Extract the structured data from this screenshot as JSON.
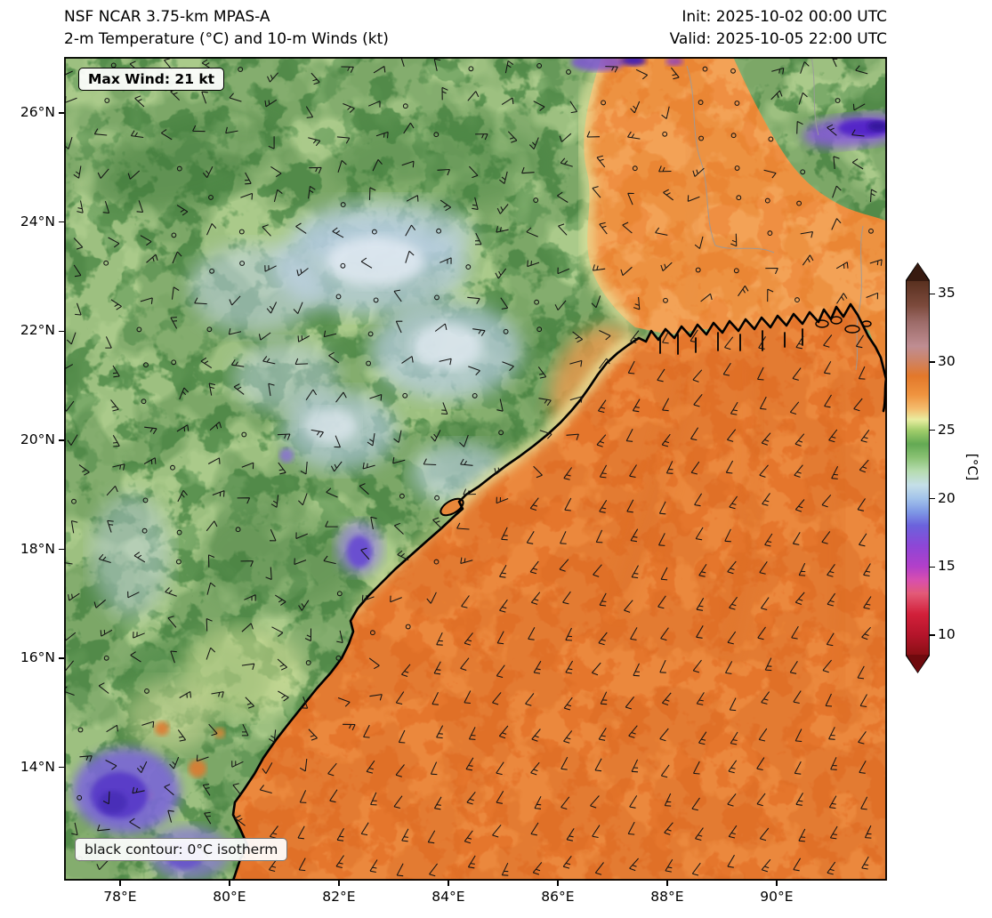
{
  "header": {
    "model": "NSF NCAR 3.75-km MPAS-A",
    "subtitle": "2-m Temperature (°C) and 10-m Winds (kt)",
    "init": "Init: 2025-10-02 00:00 UTC",
    "valid": "Valid: 2025-10-05 22:00 UTC"
  },
  "annotations": {
    "max_wind": "Max Wind: 21 kt",
    "contour": "black contour: 0°C isotherm"
  },
  "chart_data": {
    "type": "heatmap",
    "title": "2-m Temperature (°C) and 10-m Winds (kt)",
    "model": "NSF NCAR 3.75-km MPAS-A",
    "init_time": "2025-10-02 00:00 UTC",
    "valid_time": "2025-10-05 22:00 UTC",
    "max_wind_kt": 21,
    "wind_units": "kt",
    "extent": {
      "lon_min": 77.0,
      "lon_max": 92.0,
      "lat_min": 11.9,
      "lat_max": 27.0
    },
    "x_axis": {
      "ticks": [
        "78°E",
        "80°E",
        "82°E",
        "84°E",
        "86°E",
        "88°E",
        "90°E"
      ],
      "values": [
        78,
        80,
        82,
        84,
        86,
        88,
        90
      ]
    },
    "y_axis": {
      "ticks": [
        "26°N",
        "24°N",
        "22°N",
        "20°N",
        "18°N",
        "16°N",
        "14°N"
      ],
      "values": [
        26,
        24,
        22,
        20,
        18,
        16,
        14
      ]
    },
    "colorbar": {
      "label": "[°C]",
      "ticks": [
        35,
        30,
        25,
        20,
        15,
        10
      ],
      "range_body": [
        8.5,
        36
      ],
      "under_color": "#6f0a0e",
      "over_color": "#371a10",
      "stops": [
        {
          "value": 8.5,
          "color": "#8a0f14"
        },
        {
          "value": 10,
          "color": "#b5152b"
        },
        {
          "value": 11.5,
          "color": "#d2203a"
        },
        {
          "value": 13,
          "color": "#e35a77"
        },
        {
          "value": 14,
          "color": "#d84fae"
        },
        {
          "value": 15,
          "color": "#b23fc9"
        },
        {
          "value": 16.5,
          "color": "#8e46d6"
        },
        {
          "value": 18,
          "color": "#6b62dc"
        },
        {
          "value": 19,
          "color": "#7e97e5"
        },
        {
          "value": 20,
          "color": "#a2c3ea"
        },
        {
          "value": 21,
          "color": "#c5dfe8"
        },
        {
          "value": 22,
          "color": "#b6dcb0"
        },
        {
          "value": 23,
          "color": "#8bc274"
        },
        {
          "value": 24,
          "color": "#63a953"
        },
        {
          "value": 25,
          "color": "#a0cc6a"
        },
        {
          "value": 25.8,
          "color": "#e9eda0"
        },
        {
          "value": 26.6,
          "color": "#f4bc6d"
        },
        {
          "value": 27.6,
          "color": "#ef9440"
        },
        {
          "value": 29,
          "color": "#e3782a"
        },
        {
          "value": 30.2,
          "color": "#cd8468"
        },
        {
          "value": 31.2,
          "color": "#bf8d92"
        },
        {
          "value": 33,
          "color": "#9c6b68"
        },
        {
          "value": 34.2,
          "color": "#7c4a3c"
        },
        {
          "value": 36,
          "color": "#59301f"
        }
      ]
    },
    "field_summary": {
      "bay_of_bengal_temp_c": "27-29",
      "ganges_delta_plains_temp_c": "26-30",
      "interior_plateau_temp_c": "20-24",
      "highland_cool_patches_temp_c": "15-19",
      "coolest_spots_temp_c": "14-16",
      "notes": "Uniform warm orange field over the Bay of Bengal with steady wind barbs; green mottled interior land; pale-blue/white cool patches over plateau; purple cold pockets in SW corner and NE corner; thick black coastal 0°C-style contour separating warm marine air from interior."
    }
  }
}
